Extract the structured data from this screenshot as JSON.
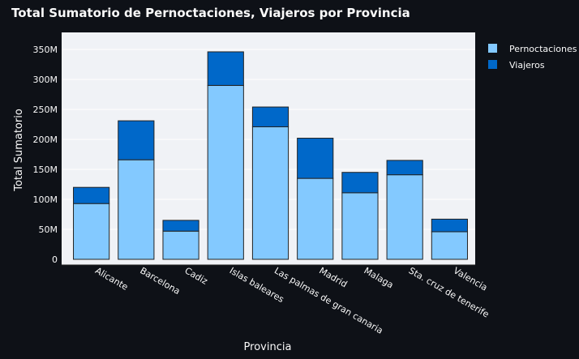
{
  "chart_data": {
    "type": "bar",
    "stacked": true,
    "title": "Total Sumatorio de Pernoctaciones, Viajeros por Provincia",
    "xlabel": "Provincia",
    "ylabel": "Total Sumatorio",
    "ylim": [
      0,
      365
    ],
    "y_unit_suffix": "M",
    "yticks": [
      0,
      50,
      100,
      150,
      200,
      250,
      300,
      350
    ],
    "ytick_labels": [
      "0",
      "50M",
      "100M",
      "150M",
      "200M",
      "250M",
      "300M",
      "350M"
    ],
    "grid": true,
    "legend_position": "top-right",
    "categories": [
      "Alicante",
      "Barcelona",
      "Cadiz",
      "Islas baleares",
      "Las palmas de gran canaria",
      "Madrid",
      "Malaga",
      "Sta. cruz de tenerife",
      "Valencia"
    ],
    "series": [
      {
        "name": "Pernoctaciones",
        "color": "#83c9ff",
        "values": [
          93,
          166,
          47,
          290,
          221,
          135,
          111,
          141,
          46
        ]
      },
      {
        "name": "Viajeros",
        "color": "#0068c9",
        "values": [
          27,
          65,
          18,
          56,
          33,
          67,
          34,
          24,
          21
        ]
      }
    ]
  }
}
